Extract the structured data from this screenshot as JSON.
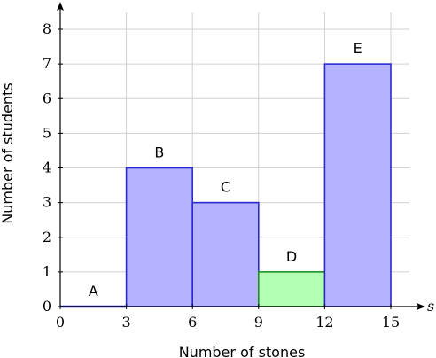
{
  "chart_data": {
    "type": "bar",
    "title": "",
    "xlabel": "Number of stones",
    "ylabel": "Number of students",
    "x_axis_symbol": "s",
    "xlim": [
      0,
      15
    ],
    "ylim": [
      0,
      8
    ],
    "xticks": [
      0,
      3,
      6,
      9,
      12,
      15
    ],
    "yticks": [
      0,
      1,
      2,
      3,
      4,
      5,
      6,
      7,
      8
    ],
    "grid": true,
    "bins": [
      {
        "label": "A",
        "x_start": 0,
        "x_end": 3,
        "value": 0,
        "color": "#b3b3ff"
      },
      {
        "label": "B",
        "x_start": 3,
        "x_end": 6,
        "value": 4,
        "color": "#b3b3ff"
      },
      {
        "label": "C",
        "x_start": 6,
        "x_end": 9,
        "value": 3,
        "color": "#b3b3ff"
      },
      {
        "label": "D",
        "x_start": 9,
        "x_end": 12,
        "value": 1,
        "color": "#b3ffb3"
      },
      {
        "label": "E",
        "x_start": 12,
        "x_end": 15,
        "value": 7,
        "color": "#b3b3ff"
      }
    ],
    "colors": {
      "bar_stroke_blue": "#2a2ad0",
      "bar_stroke_green": "#1f8f1f",
      "grid": "#d0d0d0",
      "axis": "#000000"
    }
  }
}
